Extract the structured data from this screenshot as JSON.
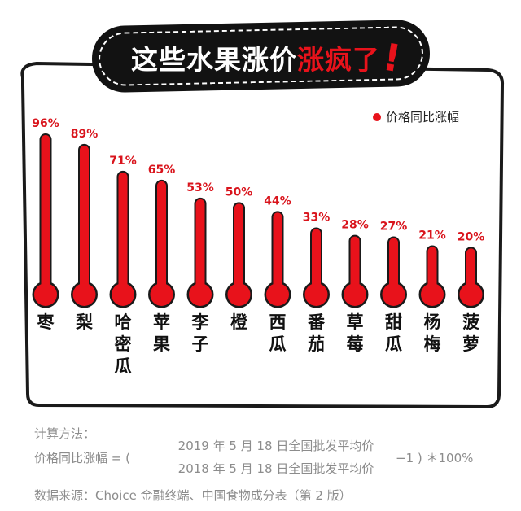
{
  "title": {
    "part1": "这些水果涨价",
    "part2": "涨疯了",
    "exclaim": "!"
  },
  "chart_data": {
    "type": "bar",
    "categories": [
      "枣",
      "梨",
      "哈密瓜",
      "苹果",
      "李子",
      "橙",
      "西瓜",
      "番茄",
      "草莓",
      "甜瓜",
      "杨梅",
      "菠萝"
    ],
    "series": [
      {
        "name": "价格同比涨幅",
        "values": [
          96,
          89,
          71,
          65,
          53,
          50,
          44,
          33,
          28,
          27,
          21,
          20
        ]
      }
    ],
    "value_labels": [
      "96%",
      "89%",
      "71%",
      "65%",
      "53%",
      "50%",
      "44%",
      "33%",
      "28%",
      "27%",
      "21%",
      "20%"
    ],
    "ylim": [
      0,
      100
    ],
    "legend_position": "top-right",
    "colors": {
      "bar": "#e8121b",
      "outline": "#1a1a1a",
      "label": "#d9141c"
    }
  },
  "legend": {
    "label": "价格同比涨幅"
  },
  "footer": {
    "method_label": "计算方法：",
    "formula_prefix": "价格同比涨幅 = (",
    "numerator": "2019 年 5 月 18 日全国批发平均价",
    "denominator": "2018 年 5 月 18 日全国批发平均价",
    "formula_suffix": "−1 ) ＊100%",
    "source": "数据来源：Choice 金融终端、中国食物成分表（第 2 版）"
  }
}
